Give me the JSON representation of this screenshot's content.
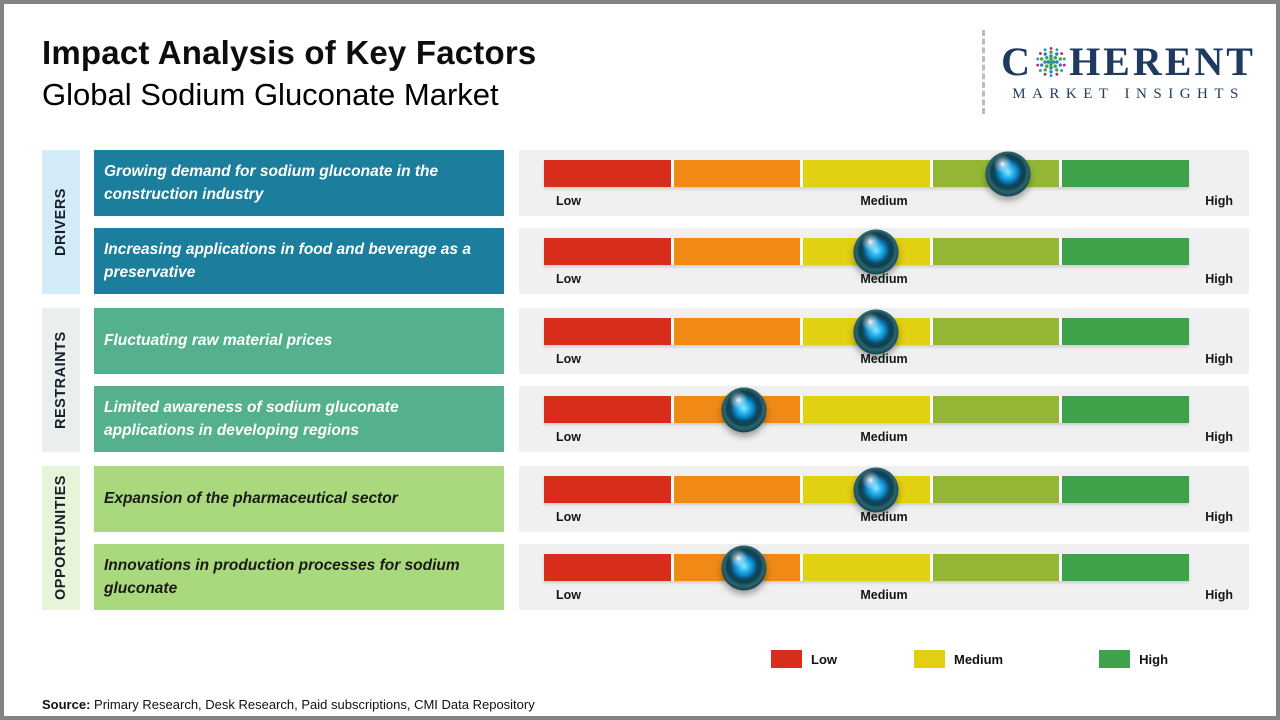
{
  "page": {
    "title": "Impact Analysis of Key Factors",
    "subtitle": "Global Sodium Gluconate Market",
    "source_label": "Source:",
    "source_text": " Primary Research, Desk Research, Paid subscriptions, CMI Data Repository"
  },
  "logo": {
    "prefix": "C",
    "suffix": "HERENT",
    "tagline": "MARKET INSIGHTS",
    "color": "#1e3a5e"
  },
  "scale": {
    "low": "Low",
    "medium": "Medium",
    "high": "High"
  },
  "scale_colors": [
    "#d92d1b",
    "#f08a14",
    "#e2d013",
    "#93b735",
    "#3ea24b"
  ],
  "groups": [
    {
      "category": "DRIVERS",
      "label_bg": "#d3ebf7",
      "box_bg": "#1b7e9d",
      "text_color": "#ffffff",
      "factors": [
        {
          "text": "Growing demand for sodium gluconate in the construction industry",
          "impact_percent": 72,
          "impact_level": "Medium-High"
        },
        {
          "text": "Increasing applications in food and beverage as a preservative",
          "impact_percent": 51.5,
          "impact_level": "Medium"
        }
      ]
    },
    {
      "category": "RESTRAINTS",
      "label_bg": "#e9efec",
      "box_bg": "#55b18d",
      "text_color": "#ffffff",
      "factors": [
        {
          "text": "Fluctuating raw material prices",
          "impact_percent": 51.5,
          "impact_level": "Medium"
        },
        {
          "text": "Limited awareness of sodium gluconate applications in developing regions",
          "impact_percent": 31,
          "impact_level": "Low-Medium"
        }
      ]
    },
    {
      "category": "OPPORTUNITIES",
      "label_bg": "#e7f4d9",
      "box_bg": "#aad87d",
      "text_color": "#1a1a1a",
      "factors": [
        {
          "text": "Expansion of the pharmaceutical sector",
          "impact_percent": 51.5,
          "impact_level": "Medium"
        },
        {
          "text": "Innovations in production processes for sodium gluconate",
          "impact_percent": 31,
          "impact_level": "Low-Medium"
        }
      ]
    }
  ],
  "legend": [
    {
      "label": "Low",
      "color": "#d92d1b"
    },
    {
      "label": "Medium",
      "color": "#e3cf12"
    },
    {
      "label": "High",
      "color": "#3fa24c"
    }
  ],
  "chart_data": {
    "type": "table",
    "title": "Impact Analysis of Key Factors",
    "subtitle": "Global Sodium Gluconate Market",
    "scale": [
      "Low",
      "Medium",
      "High"
    ],
    "rows": [
      {
        "group": "Drivers",
        "factor": "Growing demand for sodium gluconate in the construction industry",
        "impact_position_pct": 72,
        "impact_level": "Medium-High"
      },
      {
        "group": "Drivers",
        "factor": "Increasing applications in food and beverage as a preservative",
        "impact_position_pct": 51.5,
        "impact_level": "Medium"
      },
      {
        "group": "Restraints",
        "factor": "Fluctuating raw material prices",
        "impact_position_pct": 51.5,
        "impact_level": "Medium"
      },
      {
        "group": "Restraints",
        "factor": "Limited awareness of sodium gluconate applications in developing regions",
        "impact_position_pct": 31,
        "impact_level": "Low-Medium"
      },
      {
        "group": "Opportunities",
        "factor": "Expansion of the pharmaceutical sector",
        "impact_position_pct": 51.5,
        "impact_level": "Medium"
      },
      {
        "group": "Opportunities",
        "factor": "Innovations in production processes for sodium gluconate",
        "impact_position_pct": 31,
        "impact_level": "Low-Medium"
      }
    ],
    "legend": [
      "Low",
      "Medium",
      "High"
    ]
  }
}
